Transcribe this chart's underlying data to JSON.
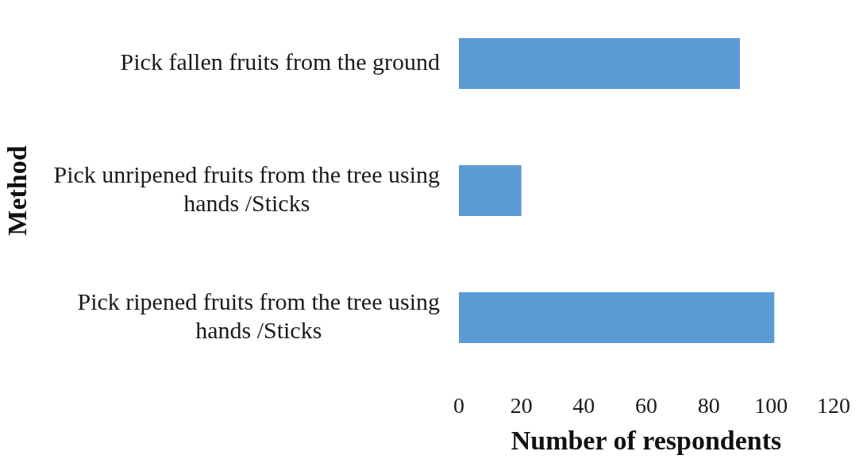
{
  "chart_data": {
    "type": "bar",
    "orientation": "horizontal",
    "categories": [
      "Pick fallen fruits from the ground",
      "Pick unripened fruits from the tree using hands /Sticks",
      "Pick ripened fruits from the tree using hands /Sticks"
    ],
    "values": [
      90,
      20,
      101
    ],
    "color": "#5b9bd5",
    "xlim": [
      0,
      120
    ],
    "xticks": [
      0,
      20,
      40,
      60,
      80,
      100,
      120
    ],
    "xlabel": "Number of respondents",
    "ylabel": "Method"
  }
}
